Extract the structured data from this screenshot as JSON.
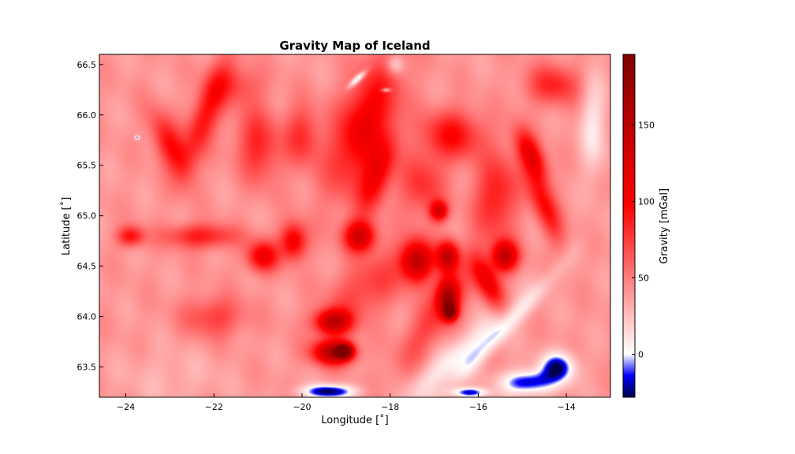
{
  "chart_data": {
    "type": "heatmap",
    "title": "Gravity Map of Iceland",
    "xlabel": "Longitude [˚]",
    "ylabel": "Latitude [˚]",
    "xlim": [
      -24.6,
      -13.0
    ],
    "ylim": [
      63.2,
      66.6
    ],
    "xticks": [
      -24,
      -22,
      -20,
      -18,
      -16,
      -14
    ],
    "xtick_labels": [
      "−24",
      "−22",
      "−20",
      "−18",
      "−16",
      "−14"
    ],
    "yticks": [
      63.5,
      64.0,
      64.5,
      65.0,
      65.5,
      66.0,
      66.5
    ],
    "ytick_labels": [
      "63.5",
      "64.0",
      "64.5",
      "65.0",
      "65.5",
      "66.0",
      "66.5"
    ],
    "grid": false,
    "colormap": "seismic",
    "colorbar": {
      "label": "Gravity [mGal]",
      "range": [
        -28,
        196
      ],
      "ticks": [
        0,
        50,
        100,
        150
      ],
      "tick_labels": [
        "0",
        "50",
        "100",
        "150"
      ],
      "colors": {
        "low": "#00004c",
        "mid_low": "#0000ff",
        "zero": "#ffffff",
        "mid_high": "#ff0000",
        "high": "#7f0000"
      }
    },
    "background_value": 40,
    "features": [
      {
        "lon": -18.6,
        "lat": 65.9,
        "value": 110,
        "rlon": 0.9,
        "rlat": 0.45,
        "rot": -35
      },
      {
        "lon": -18.3,
        "lat": 65.4,
        "value": 100,
        "rlon": 0.5,
        "rlat": 0.25,
        "rot": -40
      },
      {
        "lon": -22.2,
        "lat": 66.0,
        "value": 95,
        "rlon": 0.7,
        "rlat": 0.25,
        "rot": -45
      },
      {
        "lon": -23.0,
        "lat": 65.7,
        "value": 95,
        "rlon": 0.5,
        "rlat": 0.22,
        "rot": 30
      },
      {
        "lon": -21.0,
        "lat": 65.7,
        "value": 85,
        "rlon": 0.5,
        "rlat": 0.35,
        "rot": 10
      },
      {
        "lon": -20.0,
        "lat": 65.8,
        "value": 80,
        "rlon": 0.4,
        "rlat": 0.3,
        "rot": 0
      },
      {
        "lon": -16.6,
        "lat": 65.8,
        "value": 95,
        "rlon": 0.7,
        "rlat": 0.25,
        "rot": 0
      },
      {
        "lon": -14.8,
        "lat": 65.6,
        "value": 110,
        "rlon": 0.4,
        "rlat": 0.18,
        "rot": 30
      },
      {
        "lon": -14.5,
        "lat": 65.1,
        "value": 95,
        "rlon": 0.5,
        "rlat": 0.2,
        "rot": 40
      },
      {
        "lon": -15.6,
        "lat": 65.2,
        "value": 90,
        "rlon": 0.5,
        "rlat": 0.4,
        "rot": -20
      },
      {
        "lon": -17.3,
        "lat": 65.3,
        "value": 80,
        "rlon": 0.5,
        "rlat": 0.3,
        "rot": 0
      },
      {
        "lon": -16.9,
        "lat": 65.05,
        "value": 120,
        "rlon": 0.2,
        "rlat": 0.1,
        "rot": 0
      },
      {
        "lon": -18.7,
        "lat": 64.8,
        "value": 130,
        "rlon": 0.35,
        "rlat": 0.15,
        "rot": 0
      },
      {
        "lon": -20.2,
        "lat": 64.75,
        "value": 110,
        "rlon": 0.3,
        "rlat": 0.18,
        "rot": 0
      },
      {
        "lon": -20.9,
        "lat": 64.6,
        "value": 110,
        "rlon": 0.35,
        "rlat": 0.15,
        "rot": 0
      },
      {
        "lon": -17.4,
        "lat": 64.55,
        "value": 140,
        "rlon": 0.35,
        "rlat": 0.2,
        "rot": 0
      },
      {
        "lon": -16.7,
        "lat": 64.6,
        "value": 140,
        "rlon": 0.25,
        "rlat": 0.15,
        "rot": 0
      },
      {
        "lon": -15.4,
        "lat": 64.6,
        "value": 140,
        "rlon": 0.3,
        "rlat": 0.15,
        "rot": 0
      },
      {
        "lon": -16.7,
        "lat": 64.2,
        "value": 145,
        "rlon": 0.25,
        "rlat": 0.18,
        "rot": 0
      },
      {
        "lon": -16.65,
        "lat": 64.05,
        "value": 165,
        "rlon": 0.15,
        "rlat": 0.08,
        "rot": 0
      },
      {
        "lon": -15.8,
        "lat": 64.35,
        "value": 110,
        "rlon": 0.4,
        "rlat": 0.18,
        "rot": 30
      },
      {
        "lon": -19.3,
        "lat": 63.95,
        "value": 140,
        "rlon": 0.4,
        "rlat": 0.12,
        "rot": 0
      },
      {
        "lon": -19.3,
        "lat": 63.65,
        "value": 155,
        "rlon": 0.45,
        "rlat": 0.12,
        "rot": 0
      },
      {
        "lon": -19.05,
        "lat": 63.66,
        "value": 175,
        "rlon": 0.18,
        "rlat": 0.07,
        "rot": 0
      },
      {
        "lon": -22.3,
        "lat": 64.8,
        "value": 90,
        "rlon": 0.8,
        "rlat": 0.12,
        "rot": 0
      },
      {
        "lon": -23.9,
        "lat": 64.8,
        "value": 95,
        "rlon": 0.3,
        "rlat": 0.1,
        "rot": 0
      },
      {
        "lon": -22.0,
        "lat": 64.0,
        "value": 75,
        "rlon": 0.7,
        "rlat": 0.2,
        "rot": 0
      },
      {
        "lon": -18.5,
        "lat": 64.3,
        "value": 75,
        "rlon": 1.0,
        "rlat": 0.3,
        "rot": -15
      },
      {
        "lon": -14.3,
        "lat": 66.3,
        "value": 85,
        "rlon": 0.6,
        "rlat": 0.2,
        "rot": 0
      },
      {
        "lon": -21.5,
        "lat": 66.3,
        "value": 70,
        "rlon": 0.6,
        "rlat": 0.2,
        "rot": 0
      },
      {
        "lon": -17.0,
        "lat": 64.0,
        "value": 75,
        "rlon": 1.0,
        "rlat": 0.25,
        "rot": -30
      },
      {
        "lon": -23.0,
        "lat": 63.4,
        "value": 30,
        "rlon": 1.2,
        "rlat": 0.3,
        "rot": 0
      },
      {
        "lon": -16.5,
        "lat": 63.6,
        "value": 5,
        "rlon": 1.3,
        "rlat": 0.18,
        "rot": -20
      },
      {
        "lon": -15.5,
        "lat": 63.85,
        "value": 12,
        "rlon": 1.5,
        "rlat": 0.12,
        "rot": -25
      },
      {
        "lon": -13.4,
        "lat": 65.9,
        "value": 10,
        "rlon": 0.3,
        "rlat": 0.5,
        "rot": 0
      },
      {
        "lon": -17.9,
        "lat": 66.5,
        "value": 5,
        "rlon": 0.2,
        "rlat": 0.1,
        "rot": 0
      },
      {
        "lon": -18.75,
        "lat": 66.36,
        "value": -25,
        "rlon": 0.2,
        "rlat": 0.04,
        "rot": -20
      },
      {
        "lon": -18.1,
        "lat": 66.25,
        "value": -20,
        "rlon": 0.1,
        "rlat": 0.02,
        "rot": 0
      },
      {
        "lon": -23.75,
        "lat": 65.78,
        "value": -15,
        "rlon": 0.05,
        "rlat": 0.02,
        "rot": 0
      },
      {
        "lon": -19.4,
        "lat": 63.26,
        "value": -28,
        "rlon": 0.6,
        "rlat": 0.07,
        "rot": 0
      },
      {
        "lon": -14.2,
        "lat": 63.5,
        "value": -24,
        "rlon": 0.4,
        "rlat": 0.15,
        "rot": 0
      },
      {
        "lon": -14.9,
        "lat": 63.35,
        "value": -22,
        "rlon": 0.6,
        "rlat": 0.12,
        "rot": 0
      },
      {
        "lon": -16.2,
        "lat": 63.25,
        "value": -18,
        "rlon": 0.4,
        "rlat": 0.05,
        "rot": 0
      }
    ]
  }
}
